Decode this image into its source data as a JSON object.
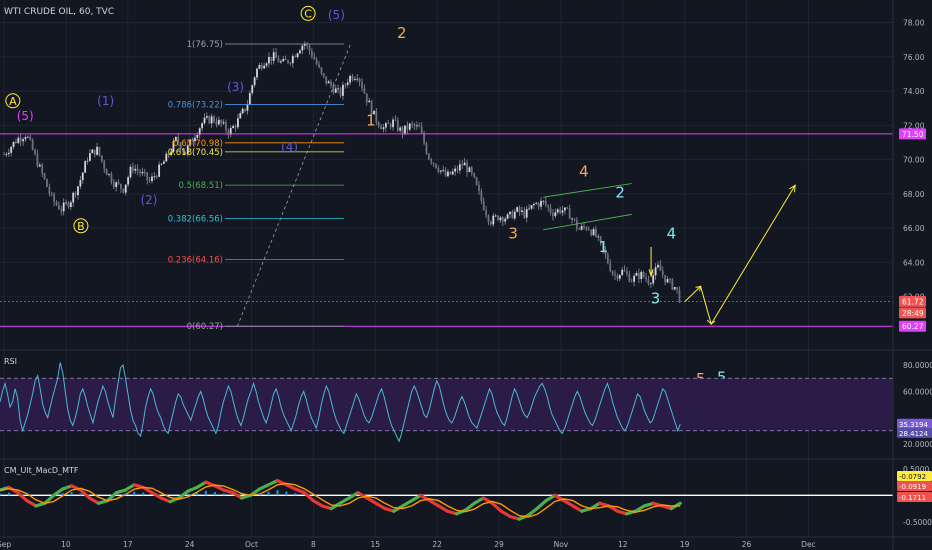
{
  "header": {
    "title": "WTI CRUDE OIL, 60, TVC"
  },
  "colors": {
    "bg": "#131722",
    "grid": "#1f2433",
    "candle": "#b7b7c4",
    "magenta": "#e040fb",
    "fib": "#9aa0ad",
    "yellow": "#ffeb3b",
    "orange": "#f7a84f",
    "cyan": "#7fe6f0",
    "blue": "#5b5bd6",
    "green": "#4caf50",
    "rsi": "#4ab8d8",
    "rsiband": "#2a1c46",
    "red": "#ff3b30"
  },
  "x_axis": {
    "ticks": [
      {
        "i": 0,
        "label": "Sep"
      },
      {
        "i": 7,
        "label": "10"
      },
      {
        "i": 14,
        "label": "17"
      },
      {
        "i": 21,
        "label": "24"
      },
      {
        "i": 28,
        "label": "Oct"
      },
      {
        "i": 35,
        "label": "8"
      },
      {
        "i": 42,
        "label": "15"
      },
      {
        "i": 49,
        "label": "22"
      },
      {
        "i": 56,
        "label": "29"
      },
      {
        "i": 63,
        "label": "Nov"
      },
      {
        "i": 70,
        "label": "12"
      },
      {
        "i": 77,
        "label": "19"
      },
      {
        "i": 84,
        "label": "26"
      },
      {
        "i": 91,
        "label": "Dec"
      }
    ]
  },
  "price_axis": {
    "ticks": [
      "78.00",
      "76.00",
      "74.00",
      "72.00",
      "70.00",
      "68.00",
      "66.00",
      "64.00",
      "62.00"
    ],
    "badges": [
      {
        "label": "71.50",
        "value": 71.5,
        "color": "#e040fb"
      },
      {
        "label": "61.72",
        "value": 61.72,
        "color": "#ef5350"
      },
      {
        "label": "28:49",
        "value": 61.05,
        "color": "#ef5350"
      },
      {
        "label": "60.27",
        "value": 60.27,
        "color": "#e040fb"
      }
    ]
  },
  "chart_data": [
    {
      "type": "candlestick",
      "title": "WTI CRUDE OIL, 60, TVC",
      "ylim": [
        59.0,
        79.2
      ],
      "x_range_days": [
        0,
        99
      ],
      "close_path": [
        {
          "x": 0,
          "y": 70.3
        },
        {
          "x": 1.5,
          "y": 71.2
        },
        {
          "x": 2.5,
          "y": 71.5
        },
        {
          "x": 3.5,
          "y": 70.2
        },
        {
          "x": 4.5,
          "y": 68.9
        },
        {
          "x": 5.5,
          "y": 67.6
        },
        {
          "x": 6.5,
          "y": 67.1
        },
        {
          "x": 7.5,
          "y": 67.6
        },
        {
          "x": 8.5,
          "y": 68.6
        },
        {
          "x": 9.5,
          "y": 70.2
        },
        {
          "x": 10.5,
          "y": 70.6
        },
        {
          "x": 11.5,
          "y": 69.4
        },
        {
          "x": 12.5,
          "y": 68.6
        },
        {
          "x": 13.5,
          "y": 68.3
        },
        {
          "x": 14.5,
          "y": 69.6
        },
        {
          "x": 15.5,
          "y": 69.2
        },
        {
          "x": 16.5,
          "y": 68.7
        },
        {
          "x": 17.5,
          "y": 69.4
        },
        {
          "x": 18.5,
          "y": 70.2
        },
        {
          "x": 19.5,
          "y": 71.2
        },
        {
          "x": 20.5,
          "y": 70.4
        },
        {
          "x": 21.5,
          "y": 71.4
        },
        {
          "x": 22.5,
          "y": 72.2
        },
        {
          "x": 23.5,
          "y": 72.4
        },
        {
          "x": 24.5,
          "y": 72.1
        },
        {
          "x": 25.5,
          "y": 71.6
        },
        {
          "x": 26.5,
          "y": 72.3
        },
        {
          "x": 27.5,
          "y": 73.2
        },
        {
          "x": 28.5,
          "y": 75.2
        },
        {
          "x": 29.5,
          "y": 75.8
        },
        {
          "x": 30.5,
          "y": 76.0
        },
        {
          "x": 31.5,
          "y": 75.6
        },
        {
          "x": 32.5,
          "y": 75.9
        },
        {
          "x": 33.5,
          "y": 76.6
        },
        {
          "x": 34.0,
          "y": 76.8
        },
        {
          "x": 35.0,
          "y": 76.0
        },
        {
          "x": 36.0,
          "y": 74.8
        },
        {
          "x": 37.0,
          "y": 74.3
        },
        {
          "x": 38.0,
          "y": 73.8
        },
        {
          "x": 39.0,
          "y": 74.8
        },
        {
          "x": 40.0,
          "y": 75.0
        },
        {
          "x": 41.0,
          "y": 73.6
        },
        {
          "x": 42.0,
          "y": 72.4
        },
        {
          "x": 43.0,
          "y": 71.8
        },
        {
          "x": 44.0,
          "y": 72.2
        },
        {
          "x": 45.0,
          "y": 71.6
        },
        {
          "x": 46.0,
          "y": 72.0
        },
        {
          "x": 47.0,
          "y": 71.8
        },
        {
          "x": 48.0,
          "y": 70.2
        },
        {
          "x": 49.0,
          "y": 69.6
        },
        {
          "x": 50.0,
          "y": 69.0
        },
        {
          "x": 51.0,
          "y": 69.3
        },
        {
          "x": 52.0,
          "y": 69.8
        },
        {
          "x": 53.0,
          "y": 69.0
        },
        {
          "x": 54.0,
          "y": 67.6
        },
        {
          "x": 55.0,
          "y": 66.4
        },
        {
          "x": 56.0,
          "y": 66.7
        },
        {
          "x": 57.0,
          "y": 66.6
        },
        {
          "x": 58.0,
          "y": 67.0
        },
        {
          "x": 59.0,
          "y": 66.8
        },
        {
          "x": 60.0,
          "y": 67.4
        },
        {
          "x": 61.0,
          "y": 67.5
        },
        {
          "x": 62.0,
          "y": 66.9
        },
        {
          "x": 63.0,
          "y": 67.1
        },
        {
          "x": 64.0,
          "y": 66.8
        },
        {
          "x": 65.0,
          "y": 65.9
        },
        {
          "x": 66.0,
          "y": 66.1
        },
        {
          "x": 67.0,
          "y": 65.5
        },
        {
          "x": 68.0,
          "y": 64.4
        },
        {
          "x": 69.0,
          "y": 63.2
        },
        {
          "x": 70.0,
          "y": 63.5
        },
        {
          "x": 71.0,
          "y": 63.0
        },
        {
          "x": 72.0,
          "y": 63.3
        },
        {
          "x": 73.0,
          "y": 62.9
        },
        {
          "x": 74.0,
          "y": 63.7
        },
        {
          "x": 75.0,
          "y": 62.9
        },
        {
          "x": 76.0,
          "y": 62.5
        },
        {
          "x": 76.5,
          "y": 61.8
        }
      ],
      "horizontal_lines": [
        {
          "name": "magenta-upper",
          "value": 71.5,
          "color": "#e040fb",
          "style": "solid"
        },
        {
          "name": "magenta-lower",
          "value": 60.27,
          "color": "#e040fb",
          "style": "solid"
        },
        {
          "name": "red-dotted",
          "value": 61.72,
          "color": "#ef5350",
          "style": "dotted"
        }
      ],
      "fibonacci": {
        "from_x": 25,
        "to_x": 43,
        "levels": [
          {
            "label": "1(76.75)",
            "value": 76.75,
            "color": "#9aa0ad"
          },
          {
            "label": "0.786(73.22)",
            "value": 73.22,
            "color": "#4a90e2"
          },
          {
            "label": "0.65(70.98)",
            "value": 70.98,
            "color": "#ff9800"
          },
          {
            "label": "0.618(70.45)",
            "value": 70.45,
            "color": "#ffeb3b"
          },
          {
            "label": "0.5(68.51)",
            "value": 68.51,
            "color": "#4caf50"
          },
          {
            "label": "0.382(66.56)",
            "value": 66.56,
            "color": "#26c6da"
          },
          {
            "label": "0.236(64.16)",
            "value": 64.16,
            "color": "#ef5350"
          },
          {
            "label": "0(60.27)",
            "value": 60.27,
            "color": "#9aa0ad"
          }
        ]
      },
      "annotations": [
        {
          "text": "A",
          "x": 1.0,
          "y": 73.2,
          "color": "#ffeb3b",
          "circled": true
        },
        {
          "text": "(5)",
          "x": 2.4,
          "y": 72.3,
          "color": "#e040fb"
        },
        {
          "text": "(1)",
          "x": 11.5,
          "y": 73.2,
          "color": "#5b5bd6"
        },
        {
          "text": "B",
          "x": 8.7,
          "y": 65.9,
          "color": "#ffeb3b",
          "circled": true
        },
        {
          "text": "(2)",
          "x": 16.4,
          "y": 67.4,
          "color": "#5b5bd6"
        },
        {
          "text": "(3)",
          "x": 26.2,
          "y": 74.0,
          "color": "#5b5bd6"
        },
        {
          "text": "(4)",
          "x": 32.3,
          "y": 70.5,
          "color": "#5b5bd6"
        },
        {
          "text": "C",
          "x": 34.4,
          "y": 78.3,
          "color": "#ffeb3b",
          "circled": true
        },
        {
          "text": "(5)",
          "x": 37.6,
          "y": 78.2,
          "color": "#5b5bd6"
        },
        {
          "text": "2",
          "x": 45.0,
          "y": 77.1,
          "color": "#f7a84f"
        },
        {
          "text": "1",
          "x": 41.5,
          "y": 72.0,
          "color": "#f7a84f"
        },
        {
          "text": "4",
          "x": 65.6,
          "y": 69.0,
          "color": "#f7a84f"
        },
        {
          "text": "3",
          "x": 57.6,
          "y": 65.4,
          "color": "#f7a84f"
        },
        {
          "text": "2",
          "x": 69.7,
          "y": 67.8,
          "color": "#7fe6f0"
        },
        {
          "text": "1",
          "x": 67.8,
          "y": 64.6,
          "color": "#7fe6f0"
        },
        {
          "text": "4",
          "x": 75.5,
          "y": 65.4,
          "color": "#7fe6f0"
        },
        {
          "text": "3",
          "x": 73.7,
          "y": 61.6,
          "color": "#7fe6f0"
        },
        {
          "text": "5",
          "x": 78.8,
          "y": 56.9,
          "color": "#f7a84f"
        },
        {
          "text": "5",
          "x": 81.2,
          "y": 57.0,
          "color": "#7fe6f0"
        }
      ],
      "projection_path": [
        {
          "x": 77.0,
          "y": 61.7
        },
        {
          "x": 78.8,
          "y": 62.6
        },
        {
          "x": 80.0,
          "y": 60.4
        },
        {
          "x": 89.5,
          "y": 68.5
        }
      ],
      "channel": {
        "upper": [
          {
            "x": 61.0,
            "y": 67.8
          },
          {
            "x": 71.0,
            "y": 68.6
          }
        ],
        "lower": [
          {
            "x": 61.0,
            "y": 65.9
          },
          {
            "x": 71.0,
            "y": 66.8
          }
        ]
      }
    },
    {
      "type": "line",
      "title": "RSI",
      "ylim": [
        10.0,
        90.0
      ],
      "band": [
        30,
        70
      ],
      "tick_labels": [
        "80.0000",
        "60.0000",
        "20.0000"
      ],
      "last_values": [
        {
          "label": "35.3194",
          "value": 35.3
        },
        {
          "label": "28.4124",
          "value": 28.4
        }
      ],
      "series": [
        {
          "values": [
            52,
            60,
            66,
            58,
            48,
            52,
            62,
            55,
            38,
            30,
            36,
            42,
            50,
            58,
            68,
            72,
            62,
            50,
            44,
            40,
            48,
            56,
            63,
            70,
            82,
            74,
            60,
            46,
            38,
            34,
            40,
            48,
            58,
            62,
            56,
            48,
            42,
            36,
            44,
            52,
            58,
            64,
            60,
            52,
            46,
            40,
            54,
            66,
            78,
            80,
            70,
            58,
            46,
            38,
            34,
            28,
            26,
            36,
            48,
            56,
            62,
            58,
            50,
            44,
            40,
            34,
            30,
            28,
            36,
            44,
            52,
            58,
            56,
            50,
            46,
            42,
            38,
            44,
            50,
            56,
            60,
            54,
            46,
            40,
            36,
            32,
            28,
            34,
            44,
            52,
            58,
            64,
            60,
            52,
            44,
            38,
            34,
            40,
            48,
            55,
            60,
            66,
            60,
            52,
            46,
            40,
            36,
            42,
            50,
            58,
            62,
            56,
            48,
            42,
            38,
            34,
            30,
            36,
            42,
            50,
            56,
            60,
            54,
            46,
            40,
            36,
            32,
            40,
            50,
            58,
            64,
            60,
            52,
            44,
            38,
            34,
            30,
            28,
            34,
            40,
            46,
            52,
            58,
            54,
            48,
            42,
            38,
            36,
            40,
            46,
            52,
            58,
            62,
            56,
            48,
            40,
            34,
            30,
            26,
            22,
            28,
            36,
            44,
            52,
            60,
            64,
            60,
            54,
            48,
            42,
            40,
            46,
            54,
            62,
            68,
            64,
            56,
            48,
            42,
            38,
            36,
            40,
            46,
            52,
            56,
            52,
            46,
            40,
            36,
            34,
            32,
            38,
            44,
            50,
            56,
            62,
            58,
            50,
            44,
            40,
            36,
            34,
            40,
            48,
            56,
            62,
            58,
            52,
            46,
            42,
            40,
            44,
            50,
            56,
            60,
            64,
            66,
            62,
            56,
            48,
            42,
            38,
            34,
            30,
            28,
            32,
            38,
            44,
            50,
            56,
            60,
            56,
            50,
            44,
            40,
            36,
            34,
            38,
            44,
            50,
            56,
            62,
            66,
            60,
            52,
            46,
            40,
            36,
            32,
            30,
            34,
            40,
            46,
            52,
            58,
            56,
            50,
            44,
            40,
            36,
            38,
            44,
            50,
            56,
            62,
            60,
            54,
            48,
            42,
            36,
            30,
            35
          ]
        }
      ]
    },
    {
      "type": "line",
      "title": "CM_Ult_MacD_MTF",
      "ylim": [
        -0.75,
        0.65
      ],
      "tick_labels": [
        "0.5000",
        "-0.5000"
      ],
      "last_values": [
        {
          "label": "-0.0792",
          "value": -0.0792,
          "color": "#ffeb3b"
        },
        {
          "label": "-0.0919",
          "value": -0.0919,
          "color": "#ef5350"
        },
        {
          "label": "-0.1711",
          "value": -0.1711,
          "color": "#ef5350"
        }
      ],
      "series": [
        {
          "values": [
            0.1,
            0.15,
            0.05,
            -0.1,
            -0.2,
            -0.15,
            0.0,
            0.12,
            0.18,
            0.1,
            -0.05,
            -0.15,
            -0.1,
            0.05,
            0.1,
            0.2,
            0.15,
            0.05,
            -0.05,
            -0.12,
            -0.05,
            0.08,
            0.15,
            0.25,
            0.18,
            0.1,
            0.05,
            -0.05,
            0.0,
            0.12,
            0.2,
            0.28,
            0.2,
            0.12,
            0.05,
            -0.1,
            -0.2,
            -0.25,
            -0.15,
            -0.05,
            0.05,
            -0.05,
            -0.15,
            -0.25,
            -0.3,
            -0.2,
            -0.1,
            0.0,
            -0.1,
            -0.2,
            -0.3,
            -0.35,
            -0.28,
            -0.15,
            -0.05,
            -0.15,
            -0.3,
            -0.4,
            -0.45,
            -0.38,
            -0.25,
            -0.1,
            0.0,
            -0.1,
            -0.2,
            -0.3,
            -0.25,
            -0.15,
            -0.2,
            -0.3,
            -0.35,
            -0.3,
            -0.2,
            -0.15,
            -0.2,
            -0.25,
            -0.15
          ]
        }
      ]
    }
  ]
}
